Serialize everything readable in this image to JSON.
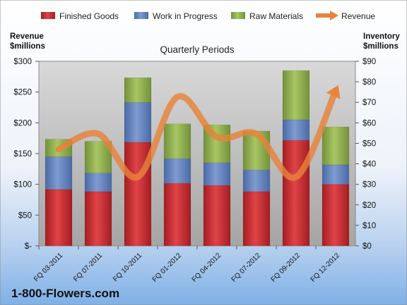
{
  "chart_data": {
    "type": "bar",
    "stacked": true,
    "title": "Quarterly Periods",
    "categories": [
      "FQ 03-2011",
      "FQ 07-2011",
      "FQ 10-2011",
      "FQ 01-2012",
      "FQ 04-2012",
      "FQ 07-2012",
      "FQ 09-2012",
      "FQ 12-2012"
    ],
    "series": [
      {
        "name": "Finished Goods",
        "axis": "right",
        "color": "#c0282d",
        "values": [
          27.5,
          26.5,
          50.5,
          30.5,
          29.5,
          26.5,
          51.5,
          30.0
        ]
      },
      {
        "name": "Work in Progress",
        "axis": "right",
        "color": "#5a78b4",
        "values": [
          16.0,
          9.0,
          19.5,
          12.0,
          11.0,
          10.5,
          10.0,
          9.5
        ]
      },
      {
        "name": "Raw Materials",
        "axis": "right",
        "color": "#8fae4a",
        "values": [
          8.5,
          15.5,
          12.0,
          17.0,
          18.5,
          19.0,
          24.0,
          18.5
        ]
      },
      {
        "name": "Revenue",
        "type": "line",
        "axis": "left",
        "color": "#e8823a",
        "values": [
          157,
          182,
          112,
          242,
          177,
          182,
          112,
          252
        ]
      }
    ],
    "left_axis": {
      "label": "Revenue $millions",
      "min": 0,
      "max": 300,
      "step": 50,
      "tick_labels": [
        "$-",
        "$50",
        "$100",
        "$150",
        "$200",
        "$250",
        "$300"
      ]
    },
    "right_axis": {
      "label": "Inventory $millions",
      "min": 0,
      "max": 90,
      "step": 10,
      "tick_labels": [
        "$0",
        "$10",
        "$20",
        "$30",
        "$40",
        "$50",
        "$60",
        "$70",
        "$80",
        "$90"
      ]
    },
    "legend_position": "top",
    "grid": false
  },
  "legend": [
    "Finished Goods",
    "Work in Progress",
    "Raw Materials",
    "Revenue"
  ],
  "axis_titles": {
    "left_line1": "Revenue",
    "left_line2": "$millions",
    "right_line1": "Inventory",
    "right_line2": "$millions"
  },
  "brand": "1-800-Flowers.com"
}
